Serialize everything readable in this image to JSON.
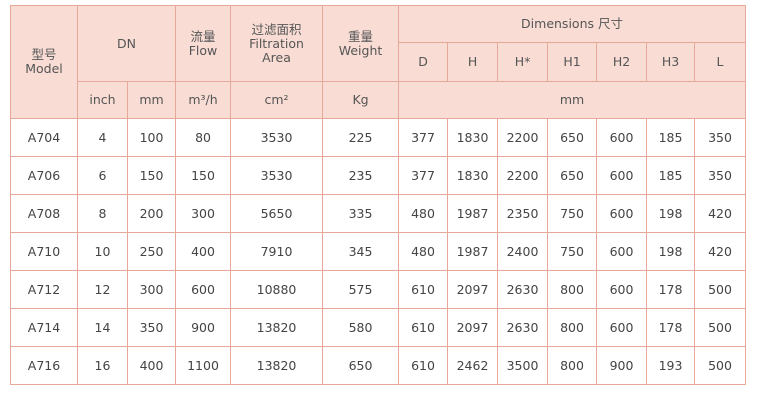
{
  "header": {
    "model": {
      "zh": "型号",
      "en": "Model"
    },
    "dn": "DN",
    "flow": {
      "zh": "流量",
      "en": "Flow"
    },
    "area": {
      "zh": "过滤面积",
      "en1": "Filtration",
      "en2": "Area"
    },
    "weight": {
      "zh": "重量",
      "en": "Weight"
    },
    "dimensions": "Dimensions 尺寸",
    "dim_columns": [
      "D",
      "H",
      "H*",
      "H1",
      "H2",
      "H3",
      "L"
    ],
    "units": [
      "inch",
      "mm",
      "m³/h",
      "cm²",
      "Kg",
      "mm"
    ]
  },
  "table": {
    "rows": [
      [
        "A704",
        4,
        100,
        80,
        3530,
        225,
        377,
        1830,
        2200,
        650,
        600,
        185,
        350
      ],
      [
        "A706",
        6,
        150,
        150,
        3530,
        235,
        377,
        1830,
        2200,
        650,
        600,
        185,
        350
      ],
      [
        "A708",
        8,
        200,
        300,
        5650,
        335,
        480,
        1987,
        2350,
        750,
        600,
        198,
        420
      ],
      [
        "A710",
        10,
        250,
        400,
        7910,
        345,
        480,
        1987,
        2400,
        750,
        600,
        198,
        420
      ],
      [
        "A712",
        12,
        300,
        600,
        10880,
        575,
        610,
        2097,
        2630,
        800,
        600,
        178,
        500
      ],
      [
        "A714",
        14,
        350,
        900,
        13820,
        580,
        610,
        2097,
        2630,
        800,
        600,
        178,
        500
      ],
      [
        "A716",
        16,
        400,
        1100,
        13820,
        650,
        610,
        2462,
        3500,
        800,
        900,
        193,
        500
      ]
    ]
  }
}
